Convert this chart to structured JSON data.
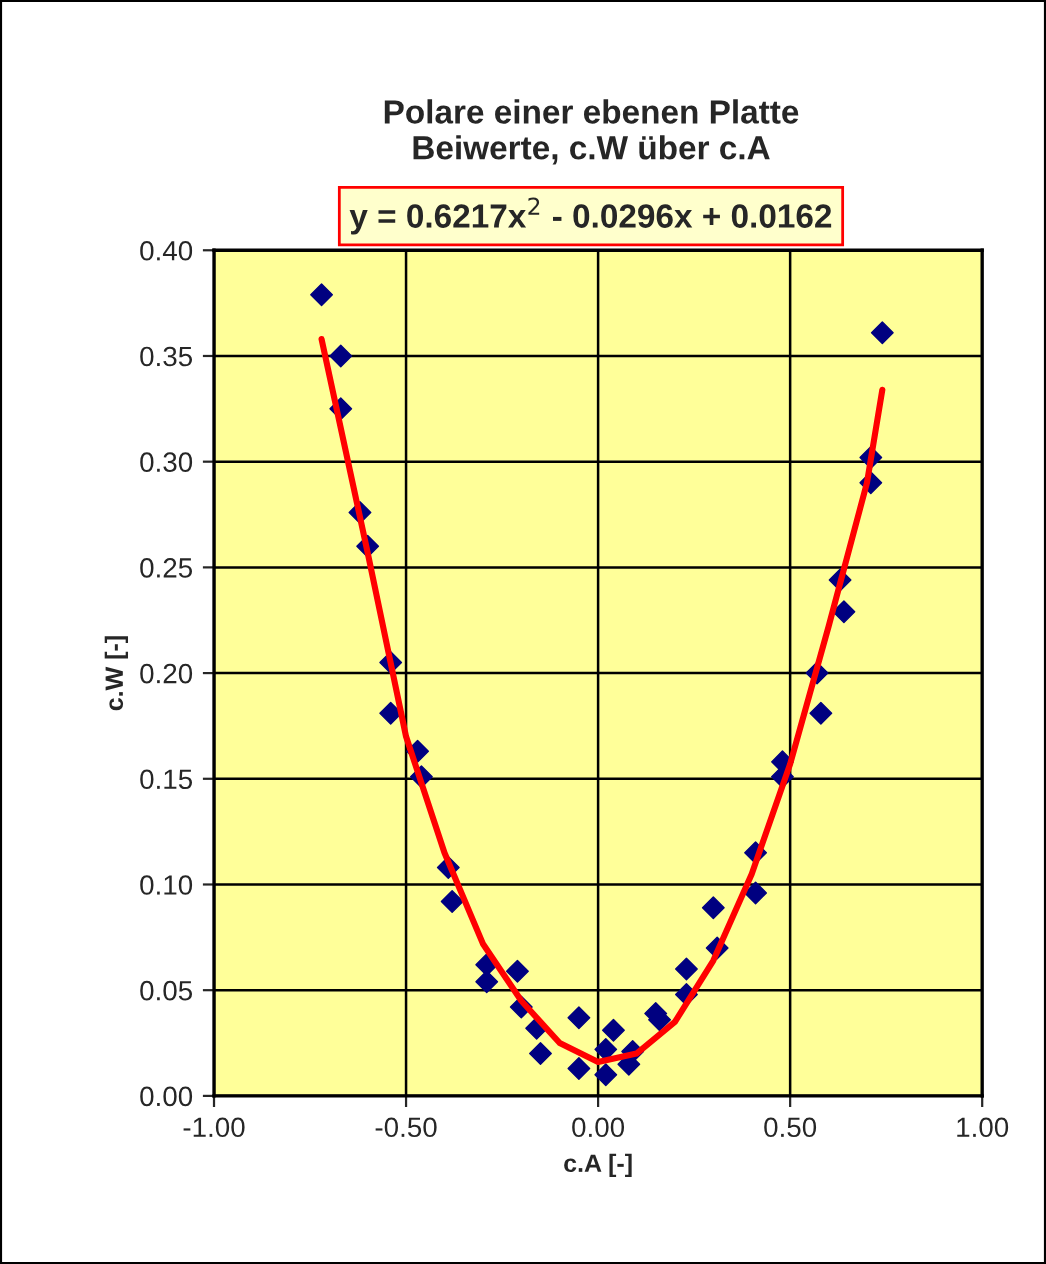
{
  "chart_data": {
    "type": "scatter",
    "title": "Polare einer ebenen Platte\nBeiwerte, c.W über c.A",
    "xlabel": "c.A [-]",
    "ylabel": "c.W [-]",
    "annotations": [
      "y = 0.6217x$^{2}$ - 0.0296x + 0.0162"
    ],
    "xlim": [
      -1,
      1
    ],
    "xticks": [
      {
        "value": -1,
        "label": "-1.00"
      },
      {
        "value": -0.5,
        "label": "-0.50"
      },
      {
        "value": 0,
        "label": "0.00"
      },
      {
        "value": 0.5,
        "label": "0.50"
      },
      {
        "value": 1,
        "label": "1.00"
      }
    ],
    "ylim": [
      0,
      0.4
    ],
    "yticks": [
      {
        "value": 0,
        "label": "0.00"
      },
      {
        "value": 0.05,
        "label": "0.05"
      },
      {
        "value": 0.1,
        "label": "0.10"
      },
      {
        "value": 0.15,
        "label": "0.15"
      },
      {
        "value": 0.2,
        "label": "0.20"
      },
      {
        "value": 0.25,
        "label": "0.25"
      },
      {
        "value": 0.3,
        "label": "0.30"
      },
      {
        "value": 0.35,
        "label": "0.35"
      },
      {
        "value": 0.4,
        "label": "0.40"
      }
    ],
    "grid": true,
    "legend": false,
    "series": [
      {
        "color": "#000080",
        "marker": "diamond",
        "x": [
          -0.72,
          -0.67,
          -0.67,
          -0.62,
          -0.6,
          -0.54,
          -0.54,
          -0.47,
          -0.46,
          -0.39,
          -0.38,
          -0.29,
          -0.29,
          -0.21,
          -0.2,
          -0.16,
          -0.15,
          -0.05,
          -0.05,
          0.02,
          0.02,
          0.04,
          0.08,
          0.09,
          0.15,
          0.16,
          0.23,
          0.23,
          0.3,
          0.31,
          0.41,
          0.41,
          0.48,
          0.48,
          0.57,
          0.58,
          0.63,
          0.64,
          0.71,
          0.71,
          0.74
        ],
        "values": [
          0.379,
          0.35,
          0.325,
          0.276,
          0.26,
          0.205,
          0.181,
          0.163,
          0.151,
          0.108,
          0.092,
          0.062,
          0.054,
          0.059,
          0.042,
          0.032,
          0.02,
          0.037,
          0.013,
          0.022,
          0.01,
          0.031,
          0.015,
          0.021,
          0.039,
          0.036,
          0.048,
          0.06,
          0.089,
          0.07,
          0.115,
          0.096,
          0.158,
          0.151,
          0.2,
          0.181,
          0.244,
          0.229,
          0.302,
          0.29,
          0.361
        ]
      },
      {
        "type": "line",
        "color": "#ff0000",
        "marker": "none",
        "line_style": "solid",
        "x": [
          -0.72,
          -0.6,
          -0.5,
          -0.4,
          -0.3,
          -0.2,
          -0.1,
          0,
          0.1,
          0.2,
          0.3,
          0.4,
          0.5,
          0.6,
          0.7,
          0.74
        ],
        "values": [
          0.358,
          0.257,
          0.17,
          0.115,
          0.072,
          0.045,
          0.025,
          0.016,
          0.02,
          0.035,
          0.064,
          0.105,
          0.157,
          0.222,
          0.29,
          0.334
        ]
      }
    ]
  }
}
